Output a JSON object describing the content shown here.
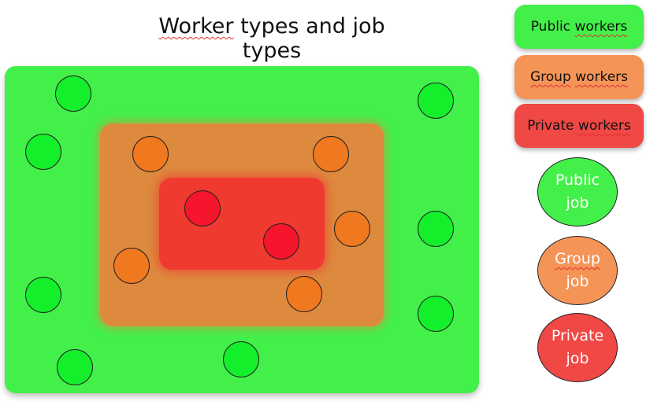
{
  "title": {
    "part1": "Worker",
    "part2": " types and job types"
  },
  "legend": {
    "public_workers": {
      "word1": "Public",
      "word2": "workers"
    },
    "group_workers": {
      "word1": "Group",
      "word2": "workers"
    },
    "private_workers": {
      "word1": "Private",
      "word2": "workers"
    },
    "public_job": {
      "line1": "Public",
      "line2": "job"
    },
    "group_job": {
      "line1": "Group",
      "line2": "job"
    },
    "private_job": {
      "line1": "Private",
      "line2": "job"
    }
  },
  "colors": {
    "public": "#43f04a",
    "group": "#de8a3e",
    "private": "#f03a30"
  }
}
